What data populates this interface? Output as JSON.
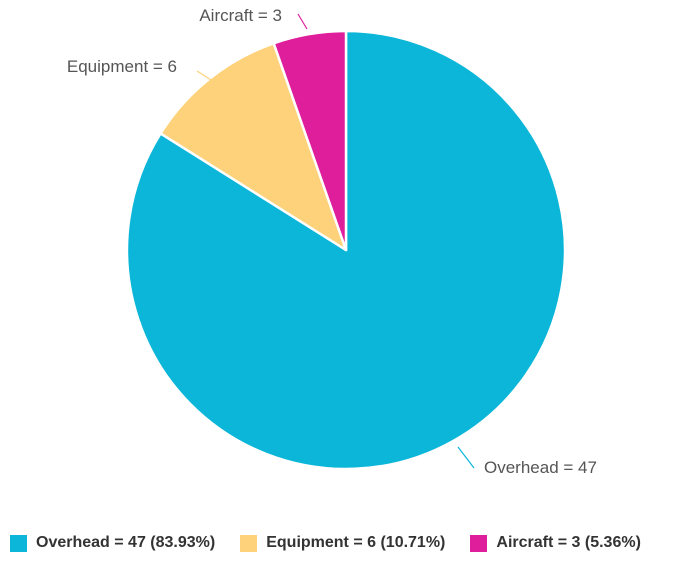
{
  "chart_data": {
    "type": "pie",
    "categories": [
      "Overhead",
      "Equipment",
      "Aircraft"
    ],
    "values": [
      47,
      6,
      3
    ],
    "colors": [
      "#0cb6d9",
      "#fdd27a",
      "#df1e9b"
    ],
    "slice_labels": [
      "Overhead = 47",
      "Equipment = 6",
      "Aircraft = 3"
    ],
    "legend_position": "bottom",
    "title": ""
  },
  "legend": {
    "items": [
      {
        "label": "Overhead = 47 (83.93%)",
        "color": "#0cb6d9"
      },
      {
        "label": "Equipment = 6 (10.71%)",
        "color": "#fdd27a"
      },
      {
        "label": "Aircraft = 3 (5.36%)",
        "color": "#df1e9b"
      }
    ]
  }
}
